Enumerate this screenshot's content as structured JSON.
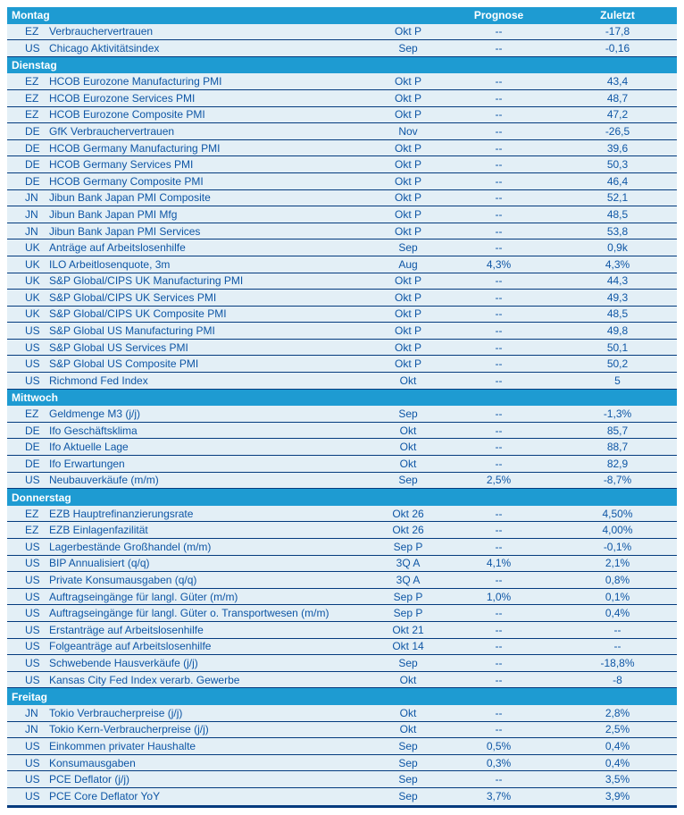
{
  "palette": {
    "header_bg": "#1E9BD2",
    "row_bg": "#E3EFF6",
    "separator": "#043B7E",
    "text": "#0E56A5",
    "header_text": "#FFFFFF",
    "page_bg": "#FFFFFF"
  },
  "columns": {
    "prognose": "Prognose",
    "zuletzt": "Zuletzt"
  },
  "sections": [
    {
      "day": "Montag",
      "rows": [
        {
          "country": "EZ",
          "indicator": "Verbrauchervertrauen",
          "period": "Okt P",
          "prognose": "--",
          "zuletzt": "-17,8"
        },
        {
          "country": "US",
          "indicator": "Chicago Aktivitätsindex",
          "period": "Sep",
          "prognose": "--",
          "zuletzt": "-0,16"
        }
      ]
    },
    {
      "day": "Dienstag",
      "rows": [
        {
          "country": "EZ",
          "indicator": "HCOB Eurozone Manufacturing PMI",
          "period": "Okt P",
          "prognose": "--",
          "zuletzt": "43,4"
        },
        {
          "country": "EZ",
          "indicator": "HCOB Eurozone Services PMI",
          "period": "Okt P",
          "prognose": "--",
          "zuletzt": "48,7"
        },
        {
          "country": "EZ",
          "indicator": "HCOB Eurozone Composite PMI",
          "period": "Okt P",
          "prognose": "--",
          "zuletzt": "47,2"
        },
        {
          "country": "DE",
          "indicator": "GfK Verbrauchervertrauen",
          "period": "Nov",
          "prognose": "--",
          "zuletzt": "-26,5"
        },
        {
          "country": "DE",
          "indicator": "HCOB Germany Manufacturing PMI",
          "period": "Okt P",
          "prognose": "--",
          "zuletzt": "39,6"
        },
        {
          "country": "DE",
          "indicator": "HCOB Germany Services PMI",
          "period": "Okt P",
          "prognose": "--",
          "zuletzt": "50,3"
        },
        {
          "country": "DE",
          "indicator": "HCOB Germany Composite PMI",
          "period": "Okt P",
          "prognose": "--",
          "zuletzt": "46,4"
        },
        {
          "country": "JN",
          "indicator": "Jibun Bank Japan PMI Composite",
          "period": "Okt P",
          "prognose": "--",
          "zuletzt": "52,1"
        },
        {
          "country": "JN",
          "indicator": "Jibun Bank Japan PMI Mfg",
          "period": "Okt P",
          "prognose": "--",
          "zuletzt": "48,5"
        },
        {
          "country": "JN",
          "indicator": "Jibun Bank Japan PMI Services",
          "period": "Okt P",
          "prognose": "--",
          "zuletzt": "53,8"
        },
        {
          "country": "UK",
          "indicator": "Anträge auf Arbeitslosenhilfe",
          "period": "Sep",
          "prognose": "--",
          "zuletzt": "0,9k"
        },
        {
          "country": "UK",
          "indicator": "ILO Arbeitlosenquote, 3m",
          "period": "Aug",
          "prognose": "4,3%",
          "zuletzt": "4,3%"
        },
        {
          "country": "UK",
          "indicator": "S&P Global/CIPS UK Manufacturing PMI",
          "period": "Okt P",
          "prognose": "--",
          "zuletzt": "44,3"
        },
        {
          "country": "UK",
          "indicator": "S&P Global/CIPS UK Services PMI",
          "period": "Okt P",
          "prognose": "--",
          "zuletzt": "49,3"
        },
        {
          "country": "UK",
          "indicator": "S&P Global/CIPS UK Composite PMI",
          "period": "Okt P",
          "prognose": "--",
          "zuletzt": "48,5"
        },
        {
          "country": "US",
          "indicator": "S&P Global US Manufacturing PMI",
          "period": "Okt P",
          "prognose": "--",
          "zuletzt": "49,8"
        },
        {
          "country": "US",
          "indicator": "S&P Global US Services PMI",
          "period": "Okt P",
          "prognose": "--",
          "zuletzt": "50,1"
        },
        {
          "country": "US",
          "indicator": "S&P Global US Composite PMI",
          "period": "Okt P",
          "prognose": "--",
          "zuletzt": "50,2"
        },
        {
          "country": "US",
          "indicator": "Richmond Fed Index",
          "period": "Okt",
          "prognose": "--",
          "zuletzt": "5"
        }
      ]
    },
    {
      "day": "Mittwoch",
      "rows": [
        {
          "country": "EZ",
          "indicator": "Geldmenge M3 (j/j)",
          "period": "Sep",
          "prognose": "--",
          "zuletzt": "-1,3%"
        },
        {
          "country": "DE",
          "indicator": "Ifo Geschäftsklima",
          "period": "Okt",
          "prognose": "--",
          "zuletzt": "85,7"
        },
        {
          "country": "DE",
          "indicator": "Ifo Aktuelle Lage",
          "period": "Okt",
          "prognose": "--",
          "zuletzt": "88,7"
        },
        {
          "country": "DE",
          "indicator": "Ifo Erwartungen",
          "period": "Okt",
          "prognose": "--",
          "zuletzt": "82,9"
        },
        {
          "country": "US",
          "indicator": "Neubauverkäufe (m/m)",
          "period": "Sep",
          "prognose": "2,5%",
          "zuletzt": "-8,7%"
        }
      ]
    },
    {
      "day": "Donnerstag",
      "rows": [
        {
          "country": "EZ",
          "indicator": "EZB Hauptrefinanzierungsrate",
          "period": "Okt 26",
          "prognose": "--",
          "zuletzt": "4,50%"
        },
        {
          "country": "EZ",
          "indicator": "EZB Einlagenfazilität",
          "period": "Okt 26",
          "prognose": "--",
          "zuletzt": "4,00%"
        },
        {
          "country": "US",
          "indicator": "Lagerbestände Großhandel (m/m)",
          "period": "Sep P",
          "prognose": "--",
          "zuletzt": "-0,1%"
        },
        {
          "country": "US",
          "indicator": "BIP Annualisiert (q/q)",
          "period": "3Q A",
          "prognose": "4,1%",
          "zuletzt": "2,1%"
        },
        {
          "country": "US",
          "indicator": "Private Konsumausgaben (q/q)",
          "period": "3Q A",
          "prognose": "--",
          "zuletzt": "0,8%"
        },
        {
          "country": "US",
          "indicator": "Auftragseingänge für langl. Güter (m/m)",
          "period": "Sep P",
          "prognose": "1,0%",
          "zuletzt": "0,1%"
        },
        {
          "country": "US",
          "indicator": "Auftragseingänge für langl. Güter o. Transportwesen (m/m)",
          "period": "Sep P",
          "prognose": "--",
          "zuletzt": "0,4%"
        },
        {
          "country": "US",
          "indicator": "Erstanträge auf Arbeitslosenhilfe",
          "period": "Okt 21",
          "prognose": "--",
          "zuletzt": "--"
        },
        {
          "country": "US",
          "indicator": "Folgeanträge auf Arbeitslosenhilfe",
          "period": "Okt 14",
          "prognose": "--",
          "zuletzt": "--"
        },
        {
          "country": "US",
          "indicator": "Schwebende Hausverkäufe (j/j)",
          "period": "Sep",
          "prognose": "--",
          "zuletzt": "-18,8%"
        },
        {
          "country": "US",
          "indicator": "Kansas City Fed Index verarb. Gewerbe",
          "period": "Okt",
          "prognose": "--",
          "zuletzt": "-8"
        }
      ]
    },
    {
      "day": "Freitag",
      "rows": [
        {
          "country": "JN",
          "indicator": "Tokio Verbraucherpreise (j/j)",
          "period": "Okt",
          "prognose": "--",
          "zuletzt": "2,8%"
        },
        {
          "country": "JN",
          "indicator": "Tokio Kern-Verbraucherpreise (j/j)",
          "period": "Okt",
          "prognose": "--",
          "zuletzt": "2,5%"
        },
        {
          "country": "US",
          "indicator": "Einkommen privater Haushalte",
          "period": "Sep",
          "prognose": "0,5%",
          "zuletzt": "0,4%"
        },
        {
          "country": "US",
          "indicator": "Konsumausgaben",
          "period": "Sep",
          "prognose": "0,3%",
          "zuletzt": "0,4%"
        },
        {
          "country": "US",
          "indicator": "PCE Deflator (j/j)",
          "period": "Sep",
          "prognose": "--",
          "zuletzt": "3,5%"
        },
        {
          "country": "US",
          "indicator": "PCE Core Deflator YoY",
          "period": "Sep",
          "prognose": "3,7%",
          "zuletzt": "3,9%"
        }
      ]
    }
  ]
}
